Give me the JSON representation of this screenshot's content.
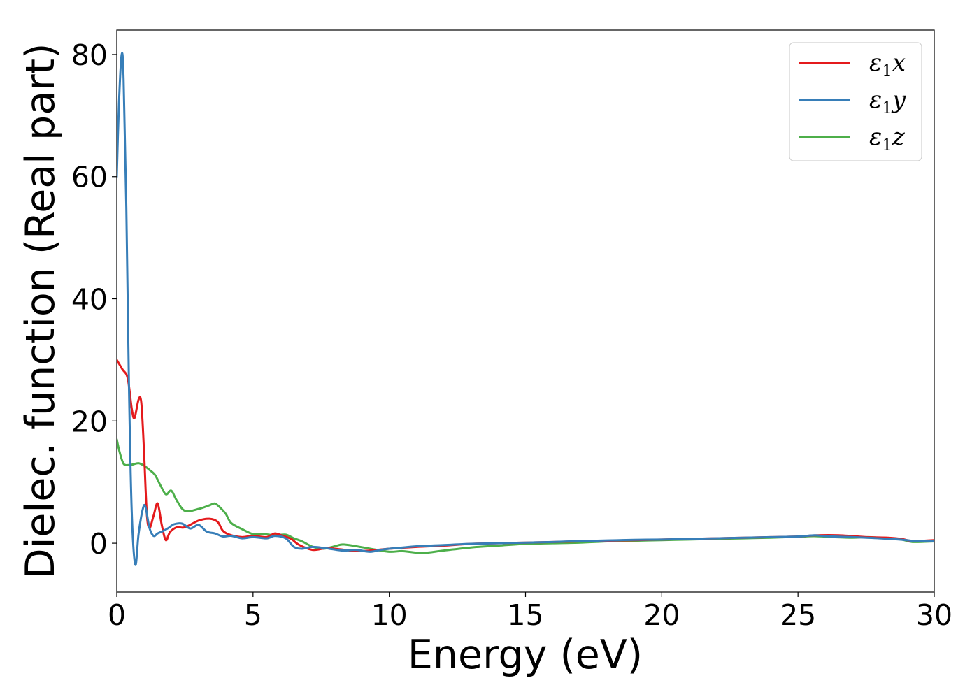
{
  "chart_data": {
    "type": "line",
    "title": "",
    "xlabel": "Energy (eV)",
    "ylabel": "Dielec. function (Real part)",
    "xlim": [
      0,
      30
    ],
    "ylim": [
      -8,
      84
    ],
    "xticks": [
      0,
      5,
      10,
      15,
      20,
      25,
      30
    ],
    "yticks": [
      0,
      20,
      40,
      60,
      80
    ],
    "grid": false,
    "legend_position": "top-right",
    "series": [
      {
        "name": "ε1x",
        "legend": {
          "base": "ε",
          "sub": "1",
          "suffix": "x"
        },
        "color": "#e41a1c",
        "points": [
          [
            0,
            30
          ],
          [
            0.2,
            28.5
          ],
          [
            0.4,
            27
          ],
          [
            0.55,
            22
          ],
          [
            0.65,
            20.5
          ],
          [
            0.8,
            23.5
          ],
          [
            0.9,
            23
          ],
          [
            1.0,
            15
          ],
          [
            1.1,
            5
          ],
          [
            1.2,
            2.5
          ],
          [
            1.35,
            4.5
          ],
          [
            1.5,
            6.5
          ],
          [
            1.65,
            3
          ],
          [
            1.8,
            0.5
          ],
          [
            1.95,
            1.8
          ],
          [
            2.2,
            2.6
          ],
          [
            2.5,
            2.6
          ],
          [
            3.0,
            3.7
          ],
          [
            3.4,
            4.0
          ],
          [
            3.7,
            3.5
          ],
          [
            3.9,
            2.0
          ],
          [
            4.2,
            1.3
          ],
          [
            4.6,
            1.0
          ],
          [
            5.0,
            1.2
          ],
          [
            5.5,
            1.0
          ],
          [
            5.8,
            1.6
          ],
          [
            6.1,
            1.2
          ],
          [
            6.4,
            0.7
          ],
          [
            6.7,
            -0.3
          ],
          [
            7.2,
            -1.1
          ],
          [
            7.7,
            -0.8
          ],
          [
            8.2,
            -1.0
          ],
          [
            8.8,
            -1.3
          ],
          [
            9.3,
            -1.2
          ],
          [
            10,
            -0.9
          ],
          [
            11,
            -0.6
          ],
          [
            12,
            -0.4
          ],
          [
            13,
            -0.1
          ],
          [
            14,
            0.0
          ],
          [
            15,
            0.1
          ],
          [
            16,
            0.2
          ],
          [
            17,
            0.3
          ],
          [
            18,
            0.4
          ],
          [
            19,
            0.5
          ],
          [
            20,
            0.6
          ],
          [
            21,
            0.7
          ],
          [
            22,
            0.8
          ],
          [
            23,
            0.9
          ],
          [
            24,
            1.0
          ],
          [
            25,
            1.1
          ],
          [
            25.7,
            1.3
          ],
          [
            26.5,
            1.3
          ],
          [
            27.5,
            1.0
          ],
          [
            28.3,
            0.9
          ],
          [
            28.8,
            0.7
          ],
          [
            29.2,
            0.3
          ],
          [
            29.6,
            0.4
          ],
          [
            30,
            0.5
          ]
        ]
      },
      {
        "name": "ε1y",
        "legend": {
          "base": "ε",
          "sub": "1",
          "suffix": "y"
        },
        "color": "#377eb8",
        "points": [
          [
            0,
            60
          ],
          [
            0.08,
            72
          ],
          [
            0.18,
            80
          ],
          [
            0.25,
            76
          ],
          [
            0.35,
            55
          ],
          [
            0.45,
            25
          ],
          [
            0.55,
            5
          ],
          [
            0.68,
            -3.5
          ],
          [
            0.8,
            1.5
          ],
          [
            0.95,
            5.5
          ],
          [
            1.05,
            6
          ],
          [
            1.2,
            2.5
          ],
          [
            1.35,
            1.2
          ],
          [
            1.5,
            1.6
          ],
          [
            1.7,
            2.0
          ],
          [
            1.9,
            2.5
          ],
          [
            2.1,
            3.1
          ],
          [
            2.4,
            3.2
          ],
          [
            2.7,
            2.4
          ],
          [
            3.0,
            3.0
          ],
          [
            3.3,
            1.9
          ],
          [
            3.6,
            1.6
          ],
          [
            3.9,
            1.1
          ],
          [
            4.2,
            1.2
          ],
          [
            4.6,
            0.8
          ],
          [
            5.0,
            1.0
          ],
          [
            5.5,
            0.8
          ],
          [
            5.8,
            1.2
          ],
          [
            6.2,
            0.8
          ],
          [
            6.5,
            -0.6
          ],
          [
            6.8,
            -0.9
          ],
          [
            7.2,
            -0.6
          ],
          [
            7.8,
            -0.9
          ],
          [
            8.3,
            -1.2
          ],
          [
            8.8,
            -1.1
          ],
          [
            9.3,
            -1.4
          ],
          [
            9.8,
            -1.0
          ],
          [
            10.5,
            -0.7
          ],
          [
            11,
            -0.5
          ],
          [
            12,
            -0.3
          ],
          [
            13,
            -0.1
          ],
          [
            14,
            0.0
          ],
          [
            15,
            0.1
          ],
          [
            16,
            0.2
          ],
          [
            17,
            0.35
          ],
          [
            18,
            0.45
          ],
          [
            19,
            0.55
          ],
          [
            20,
            0.6
          ],
          [
            21,
            0.7
          ],
          [
            22,
            0.8
          ],
          [
            23,
            0.9
          ],
          [
            24,
            1.0
          ],
          [
            25,
            1.1
          ],
          [
            25.6,
            1.3
          ],
          [
            26,
            1.15
          ],
          [
            27,
            1.0
          ],
          [
            28,
            0.8
          ],
          [
            29,
            0.5
          ],
          [
            29.3,
            0.3
          ],
          [
            30,
            0.4
          ]
        ]
      },
      {
        "name": "ε1z",
        "legend": {
          "base": "ε",
          "sub": "1",
          "suffix": "z"
        },
        "color": "#4daf4a",
        "points": [
          [
            0,
            17
          ],
          [
            0.1,
            15
          ],
          [
            0.25,
            13
          ],
          [
            0.45,
            12.8
          ],
          [
            0.6,
            12.9
          ],
          [
            0.8,
            13.1
          ],
          [
            1.0,
            12.7
          ],
          [
            1.2,
            12.0
          ],
          [
            1.4,
            11.2
          ],
          [
            1.6,
            9.5
          ],
          [
            1.8,
            8.0
          ],
          [
            2.0,
            8.6
          ],
          [
            2.2,
            7.0
          ],
          [
            2.5,
            5.3
          ],
          [
            3.0,
            5.6
          ],
          [
            3.4,
            6.2
          ],
          [
            3.6,
            6.5
          ],
          [
            3.8,
            5.8
          ],
          [
            4.0,
            4.8
          ],
          [
            4.2,
            3.3
          ],
          [
            4.6,
            2.3
          ],
          [
            5.0,
            1.5
          ],
          [
            5.4,
            1.5
          ],
          [
            5.8,
            1.3
          ],
          [
            6.2,
            1.4
          ],
          [
            6.5,
            0.8
          ],
          [
            6.8,
            0.3
          ],
          [
            7.2,
            -0.6
          ],
          [
            7.6,
            -0.9
          ],
          [
            8.0,
            -0.5
          ],
          [
            8.3,
            -0.2
          ],
          [
            8.8,
            -0.5
          ],
          [
            9.3,
            -0.9
          ],
          [
            10.0,
            -1.4
          ],
          [
            10.5,
            -1.3
          ],
          [
            11.2,
            -1.6
          ],
          [
            12,
            -1.2
          ],
          [
            13,
            -0.7
          ],
          [
            14,
            -0.4
          ],
          [
            15,
            -0.1
          ],
          [
            16,
            0.0
          ],
          [
            17,
            0.1
          ],
          [
            18,
            0.3
          ],
          [
            19,
            0.4
          ],
          [
            20,
            0.5
          ],
          [
            21,
            0.6
          ],
          [
            22,
            0.7
          ],
          [
            23,
            0.8
          ],
          [
            24,
            0.9
          ],
          [
            25,
            1.05
          ],
          [
            25.6,
            1.15
          ],
          [
            26.3,
            1.0
          ],
          [
            27,
            0.9
          ],
          [
            27.6,
            1.0
          ],
          [
            28.2,
            0.8
          ],
          [
            28.8,
            0.6
          ],
          [
            29.2,
            0.2
          ],
          [
            30,
            0.3
          ]
        ]
      }
    ]
  }
}
